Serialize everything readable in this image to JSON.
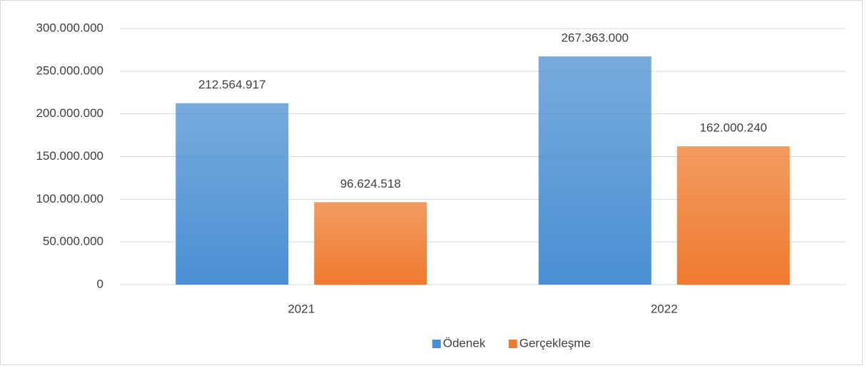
{
  "chart_data": {
    "type": "bar",
    "categories": [
      "2021",
      "2022"
    ],
    "series": [
      {
        "name": "Ödenek",
        "color": "#4a8fd3",
        "values": [
          212564917,
          267363000
        ],
        "value_labels": [
          "212.564.917",
          "267.363.000"
        ]
      },
      {
        "name": "Gerçekleşme",
        "color": "#ef7a2e",
        "values": [
          96624518,
          162000240
        ],
        "value_labels": [
          "96.624.518",
          "162.000.240"
        ]
      }
    ],
    "ylim": [
      0,
      300000000
    ],
    "yticks": [
      0,
      {
        "value": 50000000,
        "label": "50.000.000"
      },
      {
        "value": 100000000,
        "label": "100.000.000"
      },
      {
        "value": 150000000,
        "label": "150.000.000"
      },
      {
        "value": 200000000,
        "label": "200.000.000"
      },
      {
        "value": 250000000,
        "label": "250.000.000"
      },
      {
        "value": 300000000,
        "label": "300.000.000"
      }
    ],
    "grid": true,
    "legend": "bottom"
  }
}
